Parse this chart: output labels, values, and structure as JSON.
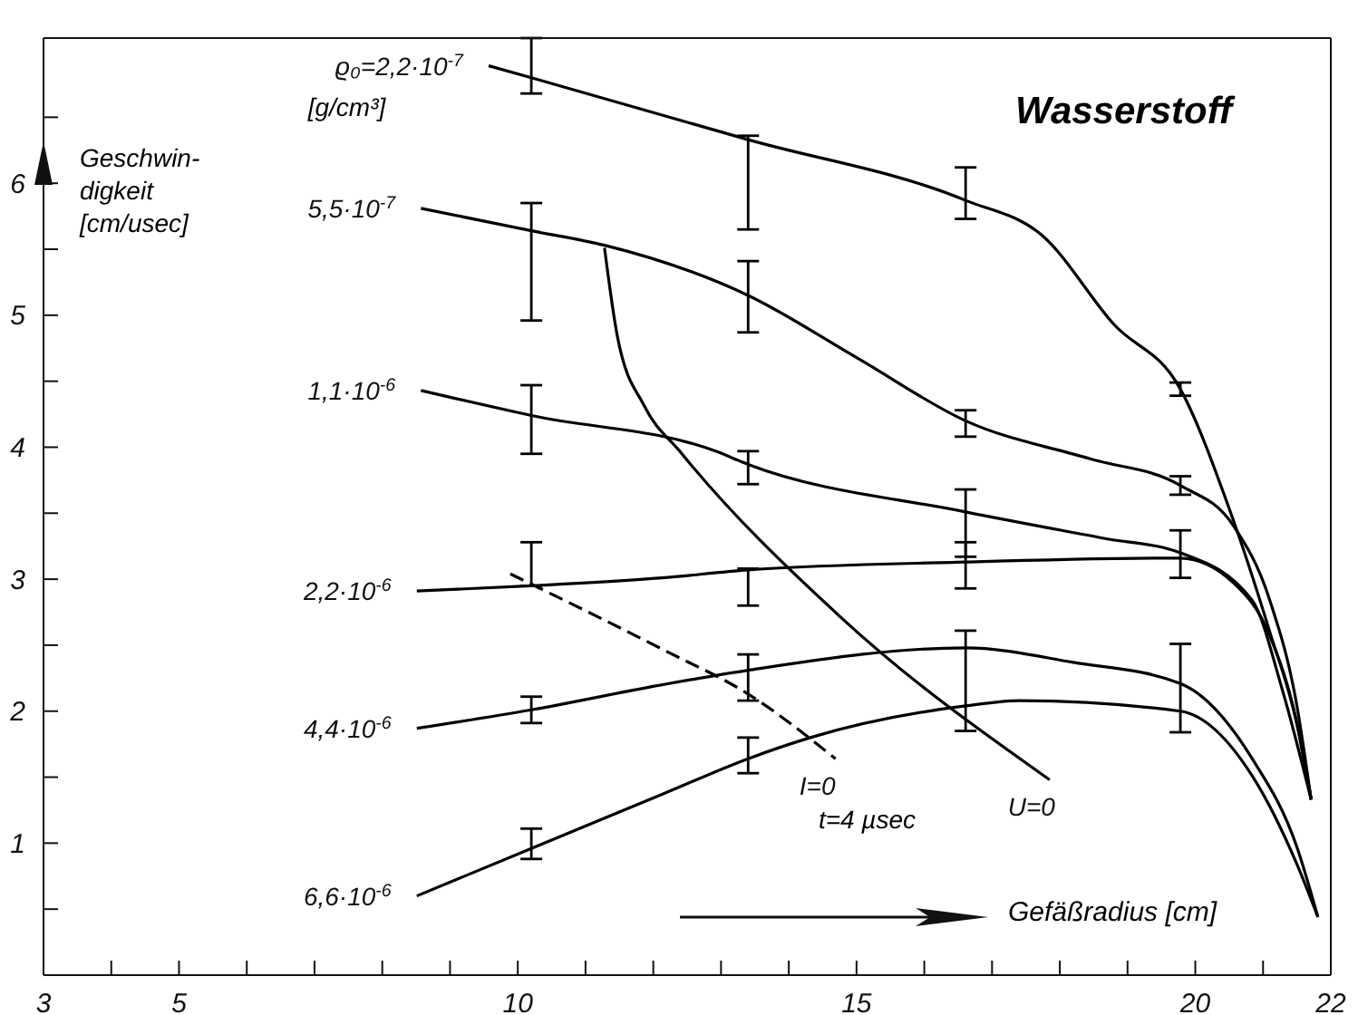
{
  "chart_data": {
    "type": "line",
    "title": "Wasserstoff",
    "xlabel": "Gefäßradius [cm]",
    "ylabel": "Geschwin-\ndigkeit\n[cm/usec]",
    "xlim": [
      3,
      22
    ],
    "xticks": [
      3,
      {
        "value": 4,
        "label": null
      },
      5,
      {
        "value": 6,
        "label": null
      },
      {
        "value": 7,
        "label": null
      },
      {
        "value": 8,
        "label": null
      },
      {
        "value": 9,
        "label": null
      },
      10,
      {
        "value": 11,
        "label": null
      },
      {
        "value": 12,
        "label": null
      },
      {
        "value": 13,
        "label": null
      },
      {
        "value": 14,
        "label": null
      },
      15,
      {
        "value": 16,
        "label": null
      },
      {
        "value": 17,
        "label": null
      },
      {
        "value": 18,
        "label": null
      },
      {
        "value": 19,
        "label": null
      },
      20,
      {
        "value": 21,
        "label": null
      },
      22
    ],
    "ylim": [
      0,
      7.1
    ],
    "yticks": [
      {
        "value": 0.5,
        "label": null
      },
      1,
      {
        "value": 1.5,
        "label": null
      },
      2,
      {
        "value": 2.5,
        "label": null
      },
      3,
      {
        "value": 3.5,
        "label": null
      },
      4,
      {
        "value": 4.5,
        "label": null
      },
      5,
      {
        "value": 5.5,
        "label": null
      },
      6,
      {
        "value": 6.5,
        "label": null
      }
    ],
    "marker": "none",
    "grid": false,
    "legend": false,
    "annotations": [
      "[g/cm³]",
      "t=4 µsec"
    ],
    "series": [
      {
        "name": "ϱ₀=2,2·10$^{-7}$",
        "color": "#000000",
        "x": [
          9.57,
          10.2,
          13.4,
          16.61,
          17.75,
          18.8,
          19.78,
          20.49,
          21.1,
          21.5,
          21.71
        ],
        "values": [
          6.89,
          6.8,
          6.33,
          5.87,
          5.6,
          4.93,
          4.44,
          3.55,
          2.6,
          1.9,
          1.33
        ],
        "errors": [
          null,
          [
            6.68,
            7.1
          ],
          [
            5.65,
            6.36
          ],
          [
            5.73,
            6.12
          ],
          null,
          null,
          [
            4.39,
            4.49
          ],
          null,
          null,
          null,
          null
        ]
      },
      {
        "name": "5,5·10$^{-7}$",
        "color": "#000000",
        "x": [
          8.57,
          10.2,
          11.28,
          13.4,
          15.03,
          16.61,
          18.46,
          19.78,
          20.57,
          21.1,
          21.5,
          21.71
        ],
        "values": [
          5.81,
          5.64,
          5.53,
          5.15,
          4.67,
          4.2,
          3.91,
          3.71,
          3.4,
          2.84,
          2.04,
          1.33
        ],
        "errors": [
          null,
          [
            4.96,
            5.85
          ],
          null,
          [
            4.87,
            5.41
          ],
          null,
          [
            4.08,
            4.28
          ],
          null,
          [
            3.64,
            3.78
          ],
          null,
          null,
          null,
          null
        ]
      },
      {
        "name": "1,1·10$^{-6}$",
        "color": "#000000",
        "x": [
          8.57,
          10.2,
          12.92,
          13.4,
          16.61,
          18.65,
          19.78,
          20.84,
          21.28,
          21.71
        ],
        "values": [
          4.43,
          4.24,
          3.97,
          3.87,
          3.51,
          3.31,
          3.2,
          2.84,
          2.17,
          1.33
        ],
        "errors": [
          null,
          [
            3.95,
            4.47
          ],
          null,
          [
            3.72,
            3.97
          ],
          [
            3.17,
            3.68
          ],
          null,
          null,
          null,
          null,
          null
        ]
      },
      {
        "name": "2,2·10$^{-6}$",
        "color": "#000000",
        "x": [
          8.51,
          10.2,
          12.13,
          13.4,
          16.61,
          19.78,
          20.57,
          21.1,
          21.5,
          21.71
        ],
        "values": [
          2.91,
          2.95,
          3.01,
          3.07,
          3.13,
          3.16,
          2.97,
          2.57,
          1.91,
          1.33
        ],
        "errors": [
          null,
          [
            2.95,
            3.28
          ],
          null,
          [
            2.8,
            3.08
          ],
          [
            2.93,
            3.28
          ],
          [
            3.01,
            3.37
          ],
          null,
          null,
          null,
          null
        ]
      },
      {
        "name": "4,4·10$^{-6}$",
        "color": "#000000",
        "x": [
          8.51,
          10.2,
          12.13,
          13.4,
          16.61,
          18.2,
          19.78,
          20.84,
          21.5,
          21.81
        ],
        "values": [
          1.87,
          2.01,
          2.2,
          2.31,
          2.48,
          2.37,
          2.21,
          1.64,
          0.97,
          0.44
        ],
        "errors": [
          null,
          [
            1.91,
            2.11
          ],
          null,
          [
            2.08,
            2.43
          ],
          [
            1.85,
            2.61
          ],
          null,
          [
            1.84,
            2.51
          ],
          null,
          null,
          null
        ]
      },
      {
        "name": "6,6·10$^{-6}$",
        "color": "#000000",
        "x": [
          8.51,
          10.2,
          12.13,
          13.4,
          14.32,
          16.61,
          17.41,
          19.78,
          20.84,
          21.5,
          21.81
        ],
        "values": [
          0.6,
          0.96,
          1.37,
          1.64,
          1.8,
          2.04,
          2.08,
          2.0,
          1.51,
          0.84,
          0.44
        ],
        "errors": [
          null,
          [
            0.88,
            1.11
          ],
          null,
          [
            1.53,
            1.8
          ],
          null,
          null,
          null,
          null,
          null,
          null,
          null
        ]
      },
      {
        "name": "U=0",
        "color": "#000000",
        "x": [
          11.28,
          11.47,
          11.87,
          12.39,
          14.77,
          17.85
        ],
        "values": [
          5.51,
          4.84,
          4.31,
          3.97,
          2.71,
          1.48
        ]
      },
      {
        "name": "I=0",
        "color": "#000000",
        "line_style": "dashed",
        "x": [
          9.89,
          12.13,
          13.4,
          14.69
        ],
        "values": [
          3.04,
          2.47,
          2.13,
          1.64
        ]
      }
    ]
  }
}
